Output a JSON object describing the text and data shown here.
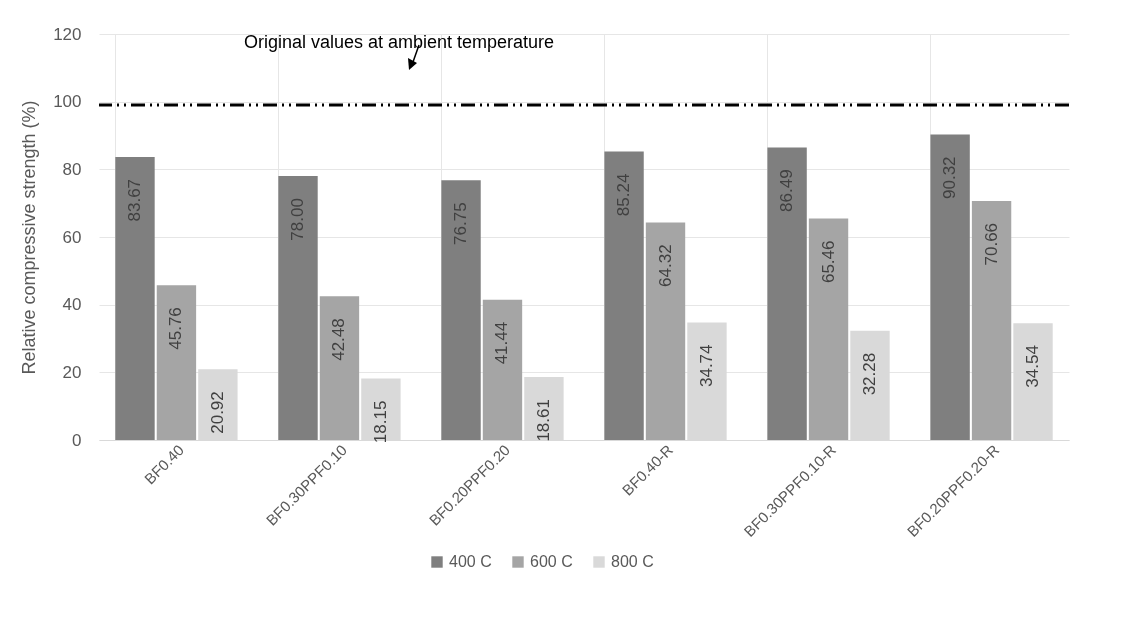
{
  "chart_data": {
    "type": "bar",
    "ylabel": "Relative compressive strength (%)",
    "categories": [
      "BF0.40",
      "BF0.30PPF0.10",
      "BF0.20PPF0.20",
      "BF0.40-R",
      "BF0.30PPF0.10-R",
      "BF0.20PPF0.20-R"
    ],
    "series": [
      {
        "name": "400 C",
        "color": "#7f7f7f",
        "values": [
          83.67,
          78.0,
          76.75,
          85.24,
          86.49,
          90.32
        ],
        "value_labels": [
          "83.67",
          "78.00",
          "76.75",
          "85.24",
          "86.49",
          "90.32"
        ]
      },
      {
        "name": "600 C",
        "color": "#a5a5a5",
        "values": [
          45.76,
          42.48,
          41.44,
          64.32,
          65.46,
          70.66
        ],
        "value_labels": [
          "45.76",
          "42.48",
          "41.44",
          "64.32",
          "65.46",
          "70.66"
        ]
      },
      {
        "name": "800 C",
        "color": "#d9d9d9",
        "values": [
          20.92,
          18.15,
          18.61,
          34.74,
          32.28,
          34.54
        ],
        "value_labels": [
          "20.92",
          "18.15",
          "18.61",
          "34.74",
          "32.28",
          "34.54"
        ]
      }
    ],
    "ylim": [
      0,
      120
    ],
    "yticks": [
      0,
      20,
      40,
      60,
      80,
      100,
      120
    ],
    "grid": true,
    "legend": "bottom",
    "ref_lines": [
      {
        "axis": "y",
        "value": 99,
        "label": "Original values at ambient temperature",
        "color": "#000000",
        "line_style": "dashed"
      }
    ]
  }
}
